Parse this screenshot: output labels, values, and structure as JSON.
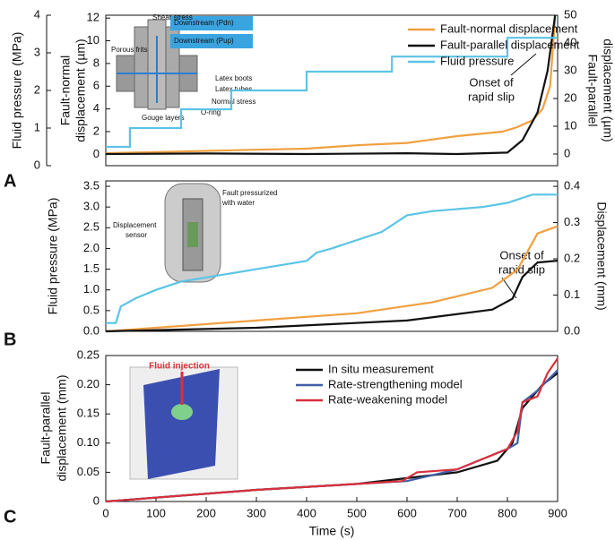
{
  "chart_data": [
    {
      "type": "line",
      "panel_label": "A",
      "ylabel": [
        "Fault-normal",
        "displacement (µm)"
      ],
      "y2label": [
        "Fault-parallel",
        "displacement (µm)"
      ],
      "y3label": "Fluid pressure (MPa)",
      "xlim": [
        0,
        900
      ],
      "ylim": [
        -1,
        12.25
      ],
      "yticks": [
        0,
        2,
        4,
        6,
        8,
        10,
        12
      ],
      "y2lim": [
        -4.2,
        50
      ],
      "y2ticks": [
        0,
        10,
        20,
        30,
        40,
        50
      ],
      "y3lim": [
        0,
        4
      ],
      "y3ticks": [
        0,
        1,
        2,
        3,
        4
      ],
      "annotation": [
        "Onset of",
        "rapid slip"
      ],
      "inset_labels": [
        "Shear stress",
        "Porous frits",
        "Latex boots",
        "Latex tubes",
        "Normal stress",
        "Gouge layers",
        "O-ring",
        "Downstream (Pdn)",
        "Downstream (Pup)"
      ],
      "series": [
        {
          "name": "Fault-normal displacement",
          "color": "#f0a040",
          "axis": "y",
          "x": [
            0,
            100,
            200,
            300,
            400,
            500,
            600,
            650,
            700,
            790,
            820,
            850,
            870,
            885,
            895
          ],
          "values": [
            0.1,
            0.2,
            0.3,
            0.4,
            0.5,
            0.8,
            1.0,
            1.3,
            1.6,
            2.0,
            2.4,
            3.0,
            4.0,
            6.0,
            12.0
          ]
        },
        {
          "name": "Fault-parallel displacement",
          "color": "#111111",
          "axis": "y2",
          "x": [
            0,
            200,
            400,
            600,
            700,
            800,
            830,
            860,
            880,
            895
          ],
          "values": [
            0,
            0.2,
            0,
            0.3,
            0,
            0.5,
            5,
            15,
            30,
            50
          ]
        },
        {
          "name": "Fluid pressure",
          "color": "#5bc4e6",
          "axis": "y3",
          "x": [
            0,
            48,
            48,
            150,
            150,
            250,
            250,
            400,
            400,
            570,
            570,
            800,
            800,
            900
          ],
          "values": [
            0.5,
            0.5,
            1.0,
            1.0,
            1.5,
            1.5,
            2.0,
            2.0,
            2.5,
            2.5,
            2.9,
            2.9,
            3.4,
            3.4
          ]
        }
      ]
    },
    {
      "type": "line",
      "panel_label": "B",
      "ylabel": "Fluid pressure (MPa)",
      "y2label": "Displacement (mm)",
      "xlim": [
        0,
        900
      ],
      "ylim": [
        0,
        3.63
      ],
      "yticks": [
        {
          "value": 0,
          "label": "0.0"
        },
        0.5,
        {
          "value": 1,
          "label": "1.0"
        },
        1.5,
        {
          "value": 2,
          "label": "2.0"
        },
        2.5,
        {
          "value": 3,
          "label": "3.0"
        },
        3.5
      ],
      "y2lim": [
        0,
        0.415
      ],
      "y2ticks": [
        {
          "value": 0,
          "label": "0.0"
        },
        0.1,
        0.2,
        0.3,
        0.4
      ],
      "annotation": [
        "Onset of",
        "rapid slip"
      ],
      "inset_labels": [
        [
          "Fault pressurized",
          "with water"
        ],
        [
          "Displacement",
          "sensor"
        ]
      ],
      "series": [
        {
          "name": "Fluid pressure",
          "color": "#5bc4e6",
          "axis": "y",
          "x": [
            0,
            20,
            30,
            60,
            100,
            150,
            200,
            300,
            400,
            420,
            450,
            550,
            600,
            650,
            750,
            800,
            850,
            900
          ],
          "values": [
            0.2,
            0.2,
            0.6,
            0.8,
            1.0,
            1.2,
            1.3,
            1.5,
            1.7,
            1.9,
            2.0,
            2.4,
            2.8,
            2.9,
            3.0,
            3.1,
            3.3,
            3.3
          ]
        },
        {
          "name": "Displacement (orange)",
          "color": "#f0a040",
          "axis": "y2",
          "x": [
            0,
            100,
            300,
            500,
            650,
            770,
            820,
            860,
            900
          ],
          "values": [
            0,
            0.01,
            0.03,
            0.05,
            0.08,
            0.12,
            0.17,
            0.27,
            0.29
          ]
        },
        {
          "name": "Displacement (black)",
          "color": "#111111",
          "axis": "y2",
          "x": [
            0,
            300,
            600,
            770,
            810,
            830,
            860,
            900
          ],
          "values": [
            0,
            0.01,
            0.03,
            0.06,
            0.09,
            0.15,
            0.19,
            0.195
          ]
        }
      ]
    },
    {
      "type": "line",
      "panel_label": "C",
      "ylabel": [
        "Fault-parallel",
        "displacement (mm)"
      ],
      "xlabel": "Time (s)",
      "inset_label": "Fluid injection",
      "xlim": [
        0,
        900
      ],
      "xticks": [
        0,
        100,
        200,
        300,
        400,
        500,
        600,
        700,
        800,
        900
      ],
      "ylim": [
        0,
        0.25
      ],
      "yticks": [
        0,
        0.05,
        {
          "value": 0.1,
          "label": "0.10"
        },
        0.15,
        {
          "value": 0.2,
          "label": "0.20"
        },
        0.25
      ],
      "legend": "upper left",
      "series": [
        {
          "name": "In situ measurement",
          "color": "#111111",
          "x": [
            0,
            300,
            500,
            700,
            780,
            810,
            830,
            850,
            870,
            900
          ],
          "values": [
            0,
            0.02,
            0.03,
            0.05,
            0.07,
            0.1,
            0.16,
            0.18,
            0.2,
            0.22
          ]
        },
        {
          "name": "Rate-strengthening model",
          "color": "#3f5fa8",
          "x": [
            0,
            300,
            500,
            600,
            700,
            800,
            820,
            830,
            860,
            900
          ],
          "values": [
            0,
            0.02,
            0.03,
            0.035,
            0.055,
            0.09,
            0.1,
            0.17,
            0.19,
            0.225
          ]
        },
        {
          "name": "Rate-weakening model",
          "color": "#d8303c",
          "x": [
            0,
            300,
            500,
            590,
            620,
            700,
            800,
            820,
            830,
            860,
            880,
            900
          ],
          "values": [
            0,
            0.02,
            0.03,
            0.035,
            0.05,
            0.055,
            0.09,
            0.12,
            0.17,
            0.18,
            0.22,
            0.245
          ]
        }
      ]
    }
  ]
}
